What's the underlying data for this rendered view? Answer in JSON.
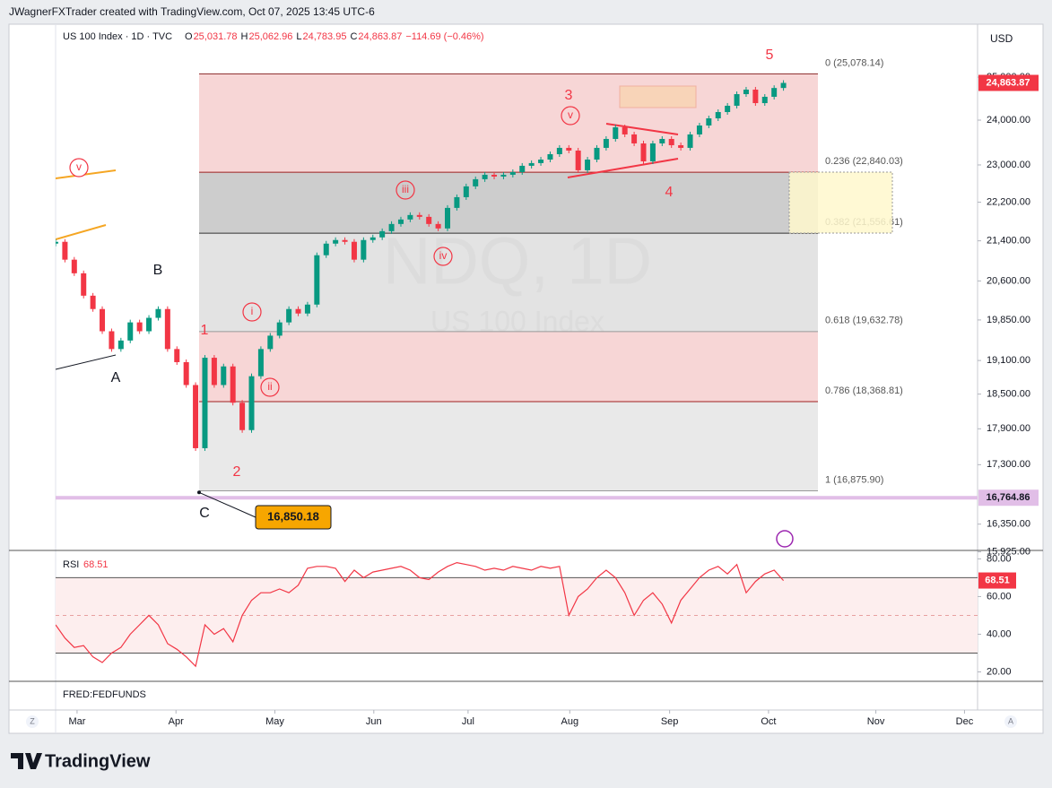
{
  "header": {
    "attribution": "JWagnerFXTrader created with TradingView.com, Oct 07, 2025 13:45 UTC-6",
    "brand": "TradingView"
  },
  "chart_data": [
    {
      "type": "candlestick",
      "title": "US 100 Index · 1D · TVC",
      "ohlc": [
        {
          "key": "O",
          "value": "25,031.78"
        },
        {
          "key": "H",
          "value": "25,062.96"
        },
        {
          "key": "L",
          "value": "24,783.95"
        },
        {
          "key": "C",
          "value": "24,863.87"
        }
      ],
      "change": "−114.69 (−0.46%)",
      "watermark": "NDQ, 1D",
      "watermark_sub": "US 100 Index",
      "currency": "USD",
      "close": [
        21380,
        21020,
        20750,
        20313,
        20057,
        19638,
        19309,
        19466,
        19804,
        19638,
        19890,
        20057,
        19309,
        19070,
        18660,
        17573,
        19150,
        18660,
        18993,
        18349,
        17878,
        18817,
        19309,
        19556,
        19804,
        20057,
        19972,
        20142,
        21109,
        21343,
        21416,
        21380,
        21020,
        21416,
        21470,
        21597,
        21745,
        21838,
        21931,
        21893,
        21745,
        21653,
        22080,
        22306,
        22536,
        22690,
        22786,
        22747,
        22786,
        22844,
        22981,
        23040,
        23117,
        23236,
        23376,
        23316,
        22884,
        23117,
        23376,
        23575,
        23837,
        23676,
        23475,
        23078,
        23475,
        23575,
        23435,
        23376,
        23676,
        23878,
        24041,
        24185,
        24330,
        24600,
        24706,
        24391,
        24538,
        24744,
        24863.87
      ],
      "up_color": "#089981",
      "down_color": "#f23645",
      "xlim": [
        0,
        98.8
      ],
      "xticks": [
        {
          "value": 2.3,
          "label": "Mar"
        },
        {
          "value": 12.9,
          "label": "Apr"
        },
        {
          "value": 23.5,
          "label": "May"
        },
        {
          "value": 34.1,
          "label": "Jun"
        },
        {
          "value": 44.2,
          "label": "Jul"
        },
        {
          "value": 55.1,
          "label": "Aug"
        },
        {
          "value": 65.8,
          "label": "Sep"
        },
        {
          "value": 76.4,
          "label": "Oct"
        },
        {
          "value": 87.9,
          "label": "Nov"
        },
        {
          "value": 97.4,
          "label": "Dec"
        }
      ],
      "ylim": [
        15960,
        26290
      ],
      "log_scale": true,
      "yticks": [
        {
          "value": 25000,
          "label": "25,000.00"
        },
        {
          "value": 24000,
          "label": "24,000.00"
        },
        {
          "value": 23000,
          "label": "23,000.00"
        },
        {
          "value": 22200,
          "label": "22,200.00"
        },
        {
          "value": 21400,
          "label": "21,400.00"
        },
        {
          "value": 20600,
          "label": "20,600.00"
        },
        {
          "value": 19850,
          "label": "19,850.00"
        },
        {
          "value": 19100,
          "label": "19,100.00"
        },
        {
          "value": 18500,
          "label": "18,500.00"
        },
        {
          "value": 17900,
          "label": "17,900.00"
        },
        {
          "value": 17300,
          "label": "17,300.00"
        },
        {
          "value": 16350,
          "label": "16,350.00"
        },
        {
          "value": 15925,
          "label": "15,925.00"
        }
      ],
      "last_price": {
        "value": 24863.87,
        "label": "24,863.87",
        "color": "#f23645"
      },
      "marker_line": {
        "value": 16764.86,
        "label": "16,764.86",
        "color": "#e1bee7"
      },
      "low_label": {
        "value": 16850.18,
        "label": "16,850.18",
        "color": "#f7a600"
      },
      "fib_levels": [
        {
          "value": 25078.14,
          "label": "0 (25,078.14)",
          "line_color": "#8b2a2a"
        },
        {
          "value": 22840.03,
          "label": "0.236 (22,840.03)",
          "line_color": "#a02020"
        },
        {
          "value": 21556.61,
          "label": "0.382 (21,556.61)",
          "line_color": "#333333"
        },
        {
          "value": 19632.78,
          "label": "0.618 (19,632.78)",
          "line_color": "#999999"
        },
        {
          "value": 18368.81,
          "label": "0.786 (18,368.81)",
          "line_color": "#a02020"
        },
        {
          "value": 16875.9,
          "label": "1 (16,875.90)",
          "line_color": "#999999"
        }
      ],
      "zone_colors": [
        "#f7d6d6",
        "#cdcdcd",
        "#e3e3e3",
        "#f7d6d6",
        "#e9e9e9"
      ],
      "waves": {
        "red": [
          "1",
          "2",
          "3",
          "4",
          "5"
        ],
        "circled": [
          "i",
          "ii",
          "iii",
          "iv",
          "v"
        ],
        "left_circled": "v",
        "black": [
          "A",
          "B",
          "C"
        ]
      }
    },
    {
      "type": "line",
      "title": "RSI",
      "values": [
        45,
        38,
        33,
        34,
        28,
        25,
        30,
        33,
        40,
        45,
        50,
        45,
        35,
        32,
        28,
        23,
        45,
        40,
        43,
        36,
        50,
        58,
        62,
        62,
        64,
        62,
        66,
        75,
        76,
        76,
        75,
        68,
        74,
        70,
        73,
        74,
        75,
        76,
        74,
        70,
        69,
        73,
        76,
        78,
        77,
        76,
        74,
        75,
        74,
        76,
        75,
        74,
        76,
        75,
        76,
        50,
        60,
        64,
        70,
        74,
        70,
        62,
        50,
        58,
        62,
        56,
        46,
        58,
        64,
        70,
        74,
        76,
        72,
        77,
        62,
        68,
        72,
        74,
        68.51
      ],
      "color": "#f23645",
      "ylim": [
        15,
        84
      ],
      "yticks": [
        {
          "value": 80,
          "label": "80.00"
        },
        {
          "value": 60,
          "label": "60.00"
        },
        {
          "value": 40,
          "label": "40.00"
        },
        {
          "value": 20,
          "label": "20.00"
        }
      ],
      "bands": [
        30,
        70
      ],
      "midline": 50,
      "last_label": {
        "value": 68.51,
        "label": "68.51"
      }
    }
  ],
  "footer_pane": "FRED:FEDFUNDS",
  "buttons": [
    "Z",
    "A"
  ]
}
